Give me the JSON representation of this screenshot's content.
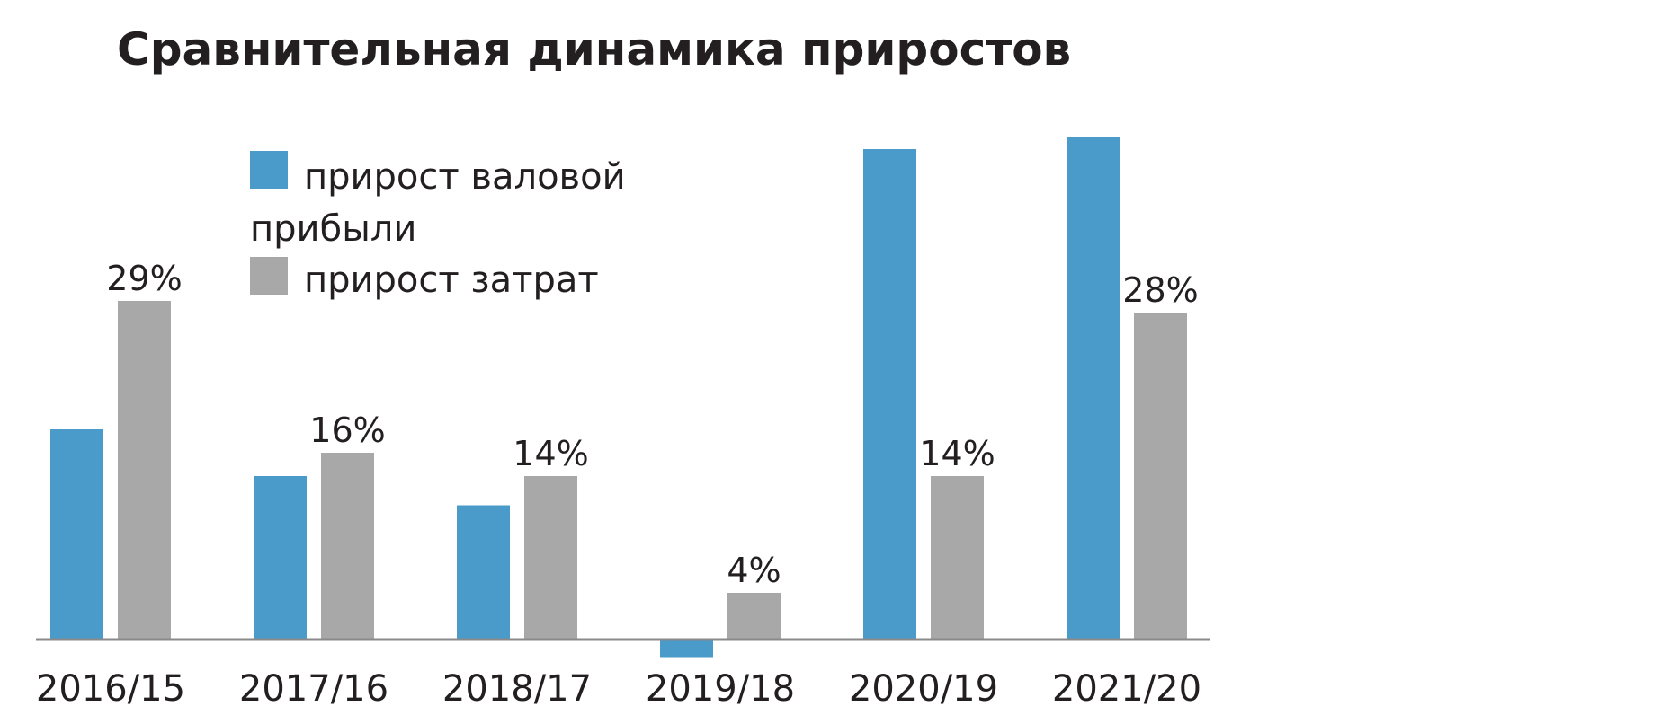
{
  "chart_data": {
    "type": "bar",
    "title": "Сравнительная динамика приростов",
    "categories": [
      "2016/15",
      "2017/16",
      "2018/17",
      "2019/18",
      "2020/19",
      "2021/20"
    ],
    "series": [
      {
        "name": "прирост валовой прибыли",
        "color": "#4a9bc9",
        "values": [
          18,
          14,
          11.5,
          -1.5,
          42,
          43
        ]
      },
      {
        "name": "прирост затрат",
        "color": "#a9a8a9",
        "values": [
          29,
          16,
          14,
          4,
          14,
          28
        ]
      }
    ],
    "data_labels": [
      [
        "",
        "",
        "",
        "",
        "",
        ""
      ],
      [
        "29%",
        "16%",
        "14%",
        "4%",
        "14%",
        "28%"
      ]
    ],
    "legend_position": "top-left",
    "grid": false
  }
}
